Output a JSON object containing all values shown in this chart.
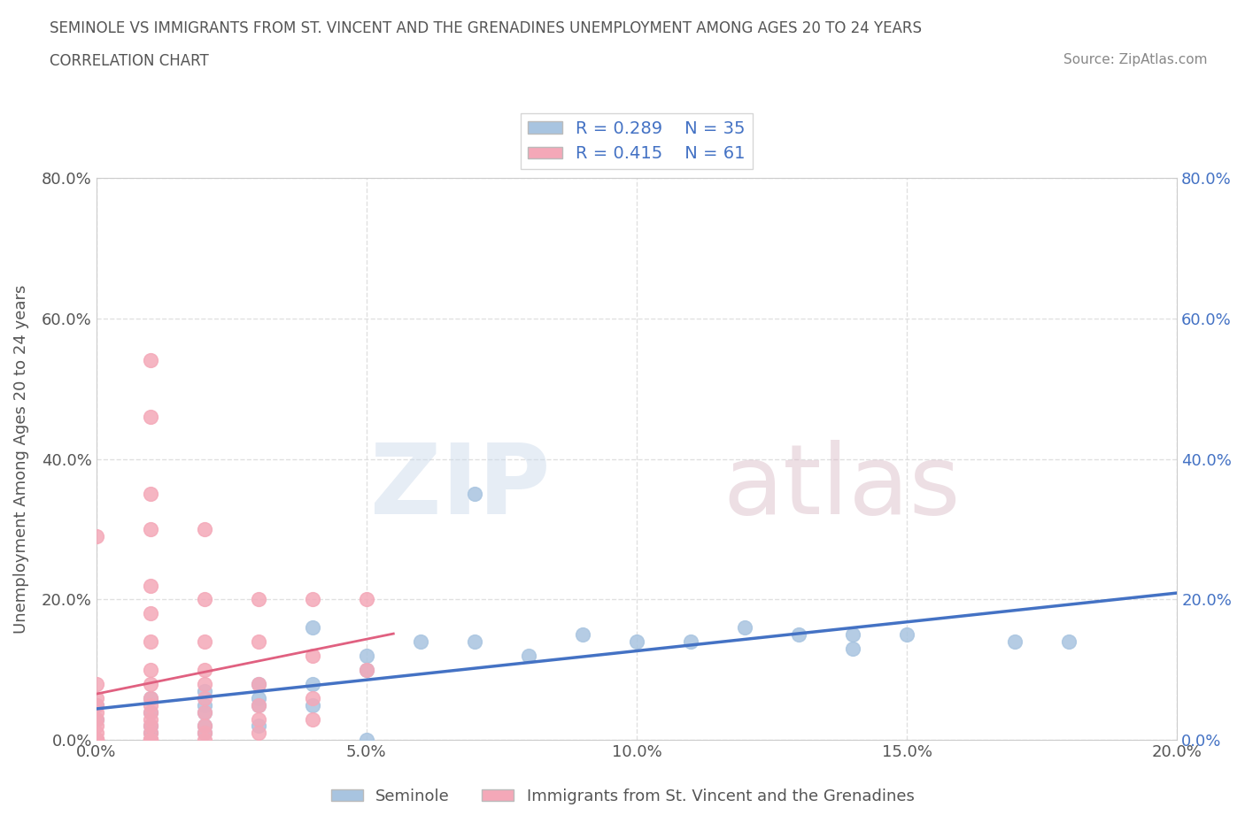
{
  "title_line1": "SEMINOLE VS IMMIGRANTS FROM ST. VINCENT AND THE GRENADINES UNEMPLOYMENT AMONG AGES 20 TO 24 YEARS",
  "title_line2": "CORRELATION CHART",
  "source_text": "Source: ZipAtlas.com",
  "ylabel": "Unemployment Among Ages 20 to 24 years",
  "xlim": [
    0.0,
    0.2
  ],
  "ylim": [
    0.0,
    0.8
  ],
  "xtick_labels": [
    "0.0%",
    "5.0%",
    "10.0%",
    "15.0%",
    "20.0%"
  ],
  "xtick_vals": [
    0.0,
    0.05,
    0.1,
    0.15,
    0.2
  ],
  "ytick_labels": [
    "0.0%",
    "20.0%",
    "40.0%",
    "60.0%",
    "80.0%"
  ],
  "ytick_vals": [
    0.0,
    0.2,
    0.4,
    0.6,
    0.8
  ],
  "seminole_R": "0.289",
  "seminole_N": "35",
  "immigrants_R": "0.415",
  "immigrants_N": "61",
  "seminole_color": "#a8c4e0",
  "immigrants_color": "#f4a8b8",
  "trend_seminole_color": "#4472c4",
  "trend_immigrants_color": "#e06080",
  "legend_text_color": "#4472c4",
  "seminole_scatter": [
    [
      0.0,
      0.05
    ],
    [
      0.0,
      0.03
    ],
    [
      0.01,
      0.06
    ],
    [
      0.01,
      0.04
    ],
    [
      0.01,
      0.02
    ],
    [
      0.01,
      0.01
    ],
    [
      0.02,
      0.07
    ],
    [
      0.02,
      0.05
    ],
    [
      0.02,
      0.04
    ],
    [
      0.02,
      0.02
    ],
    [
      0.02,
      0.01
    ],
    [
      0.03,
      0.08
    ],
    [
      0.03,
      0.06
    ],
    [
      0.03,
      0.05
    ],
    [
      0.03,
      0.02
    ],
    [
      0.04,
      0.08
    ],
    [
      0.04,
      0.05
    ],
    [
      0.04,
      0.16
    ],
    [
      0.05,
      0.1
    ],
    [
      0.05,
      0.12
    ],
    [
      0.05,
      0.0
    ],
    [
      0.06,
      0.14
    ],
    [
      0.07,
      0.35
    ],
    [
      0.07,
      0.14
    ],
    [
      0.08,
      0.12
    ],
    [
      0.09,
      0.15
    ],
    [
      0.1,
      0.14
    ],
    [
      0.11,
      0.14
    ],
    [
      0.12,
      0.16
    ],
    [
      0.13,
      0.15
    ],
    [
      0.14,
      0.15
    ],
    [
      0.14,
      0.13
    ],
    [
      0.15,
      0.15
    ],
    [
      0.17,
      0.14
    ],
    [
      0.18,
      0.14
    ]
  ],
  "immigrants_scatter": [
    [
      0.0,
      0.29
    ],
    [
      0.0,
      0.08
    ],
    [
      0.0,
      0.06
    ],
    [
      0.0,
      0.05
    ],
    [
      0.0,
      0.04
    ],
    [
      0.0,
      0.03
    ],
    [
      0.0,
      0.02
    ],
    [
      0.0,
      0.01
    ],
    [
      0.0,
      0.0
    ],
    [
      0.0,
      0.0
    ],
    [
      0.0,
      0.0
    ],
    [
      0.0,
      0.0
    ],
    [
      0.0,
      0.0
    ],
    [
      0.0,
      0.0
    ],
    [
      0.0,
      0.0
    ],
    [
      0.0,
      0.0
    ],
    [
      0.0,
      0.0
    ],
    [
      0.0,
      0.0
    ],
    [
      0.01,
      0.54
    ],
    [
      0.01,
      0.46
    ],
    [
      0.01,
      0.35
    ],
    [
      0.01,
      0.3
    ],
    [
      0.01,
      0.22
    ],
    [
      0.01,
      0.18
    ],
    [
      0.01,
      0.14
    ],
    [
      0.01,
      0.1
    ],
    [
      0.01,
      0.08
    ],
    [
      0.01,
      0.06
    ],
    [
      0.01,
      0.05
    ],
    [
      0.01,
      0.04
    ],
    [
      0.01,
      0.03
    ],
    [
      0.01,
      0.02
    ],
    [
      0.01,
      0.01
    ],
    [
      0.01,
      0.0
    ],
    [
      0.01,
      0.0
    ],
    [
      0.01,
      0.0
    ],
    [
      0.01,
      0.0
    ],
    [
      0.01,
      0.0
    ],
    [
      0.01,
      0.0
    ],
    [
      0.02,
      0.3
    ],
    [
      0.02,
      0.2
    ],
    [
      0.02,
      0.14
    ],
    [
      0.02,
      0.1
    ],
    [
      0.02,
      0.08
    ],
    [
      0.02,
      0.06
    ],
    [
      0.02,
      0.04
    ],
    [
      0.02,
      0.02
    ],
    [
      0.02,
      0.01
    ],
    [
      0.02,
      0.0
    ],
    [
      0.03,
      0.2
    ],
    [
      0.03,
      0.14
    ],
    [
      0.03,
      0.08
    ],
    [
      0.03,
      0.05
    ],
    [
      0.03,
      0.03
    ],
    [
      0.03,
      0.01
    ],
    [
      0.04,
      0.2
    ],
    [
      0.04,
      0.12
    ],
    [
      0.04,
      0.06
    ],
    [
      0.04,
      0.03
    ],
    [
      0.05,
      0.2
    ],
    [
      0.05,
      0.1
    ]
  ],
  "background_color": "#ffffff",
  "grid_color": "#dddddd"
}
